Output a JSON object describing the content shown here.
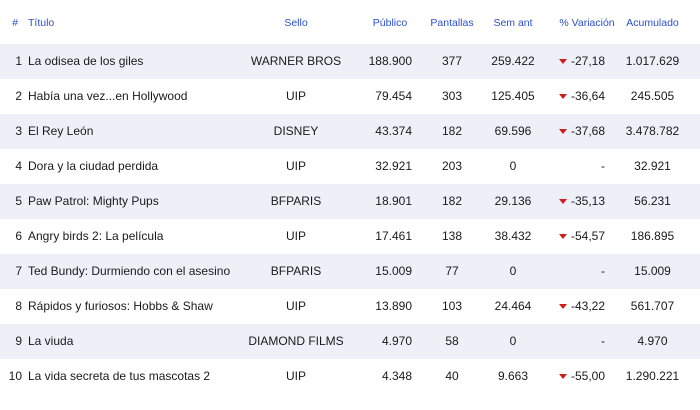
{
  "header": {
    "num": "#",
    "title": "Título",
    "sello": "Sello",
    "publico": "Público",
    "pantallas": "Pantallas",
    "sem_ant": "Sem ant",
    "variacion": "% Variación",
    "acumulado": "Acumulado"
  },
  "rows": [
    {
      "num": "1",
      "title": "La odisea de los giles",
      "sello": "WARNER BROS",
      "publico": "188.900",
      "pantallas": "377",
      "sem_ant": "259.422",
      "variacion": "-27,18",
      "trend": "down",
      "acumulado": "1.017.629"
    },
    {
      "num": "2",
      "title": "Había una vez...en Hollywood",
      "sello": "UIP",
      "publico": "79.454",
      "pantallas": "303",
      "sem_ant": "125.405",
      "variacion": "-36,64",
      "trend": "down",
      "acumulado": "245.505"
    },
    {
      "num": "3",
      "title": "El Rey León",
      "sello": "DISNEY",
      "publico": "43.374",
      "pantallas": "182",
      "sem_ant": "69.596",
      "variacion": "-37,68",
      "trend": "down",
      "acumulado": "3.478.782"
    },
    {
      "num": "4",
      "title": "Dora y la ciudad perdida",
      "sello": "UIP",
      "publico": "32.921",
      "pantallas": "203",
      "sem_ant": "0",
      "variacion": "-",
      "trend": "none",
      "acumulado": "32.921"
    },
    {
      "num": "5",
      "title": "Paw Patrol: Mighty Pups",
      "sello": "BFPARIS",
      "publico": "18.901",
      "pantallas": "182",
      "sem_ant": "29.136",
      "variacion": "-35,13",
      "trend": "down",
      "acumulado": "56.231"
    },
    {
      "num": "6",
      "title": "Angry birds 2: La película",
      "sello": "UIP",
      "publico": "17.461",
      "pantallas": "138",
      "sem_ant": "38.432",
      "variacion": "-54,57",
      "trend": "down",
      "acumulado": "186.895"
    },
    {
      "num": "7",
      "title": "Ted Bundy: Durmiendo con el asesino",
      "sello": "BFPARIS",
      "publico": "15.009",
      "pantallas": "77",
      "sem_ant": "0",
      "variacion": "-",
      "trend": "none",
      "acumulado": "15.009"
    },
    {
      "num": "8",
      "title": "Rápidos y furiosos: Hobbs & Shaw",
      "sello": "UIP",
      "publico": "13.890",
      "pantallas": "103",
      "sem_ant": "24.464",
      "variacion": "-43,22",
      "trend": "down",
      "acumulado": "561.707"
    },
    {
      "num": "9",
      "title": "La viuda",
      "sello": "DIAMOND FILMS",
      "publico": "4.970",
      "pantallas": "58",
      "sem_ant": "0",
      "variacion": "-",
      "trend": "none",
      "acumulado": "4.970"
    },
    {
      "num": "10",
      "title": "La vida secreta de tus mascotas 2",
      "sello": "UIP",
      "publico": "4.348",
      "pantallas": "40",
      "sem_ant": "9.663",
      "variacion": "-55,00",
      "trend": "down",
      "acumulado": "1.290.221"
    }
  ],
  "colors": {
    "header_text": "#2b4fcf",
    "alt_row": "#eef0f8",
    "trend_down": "#d21c1c"
  }
}
